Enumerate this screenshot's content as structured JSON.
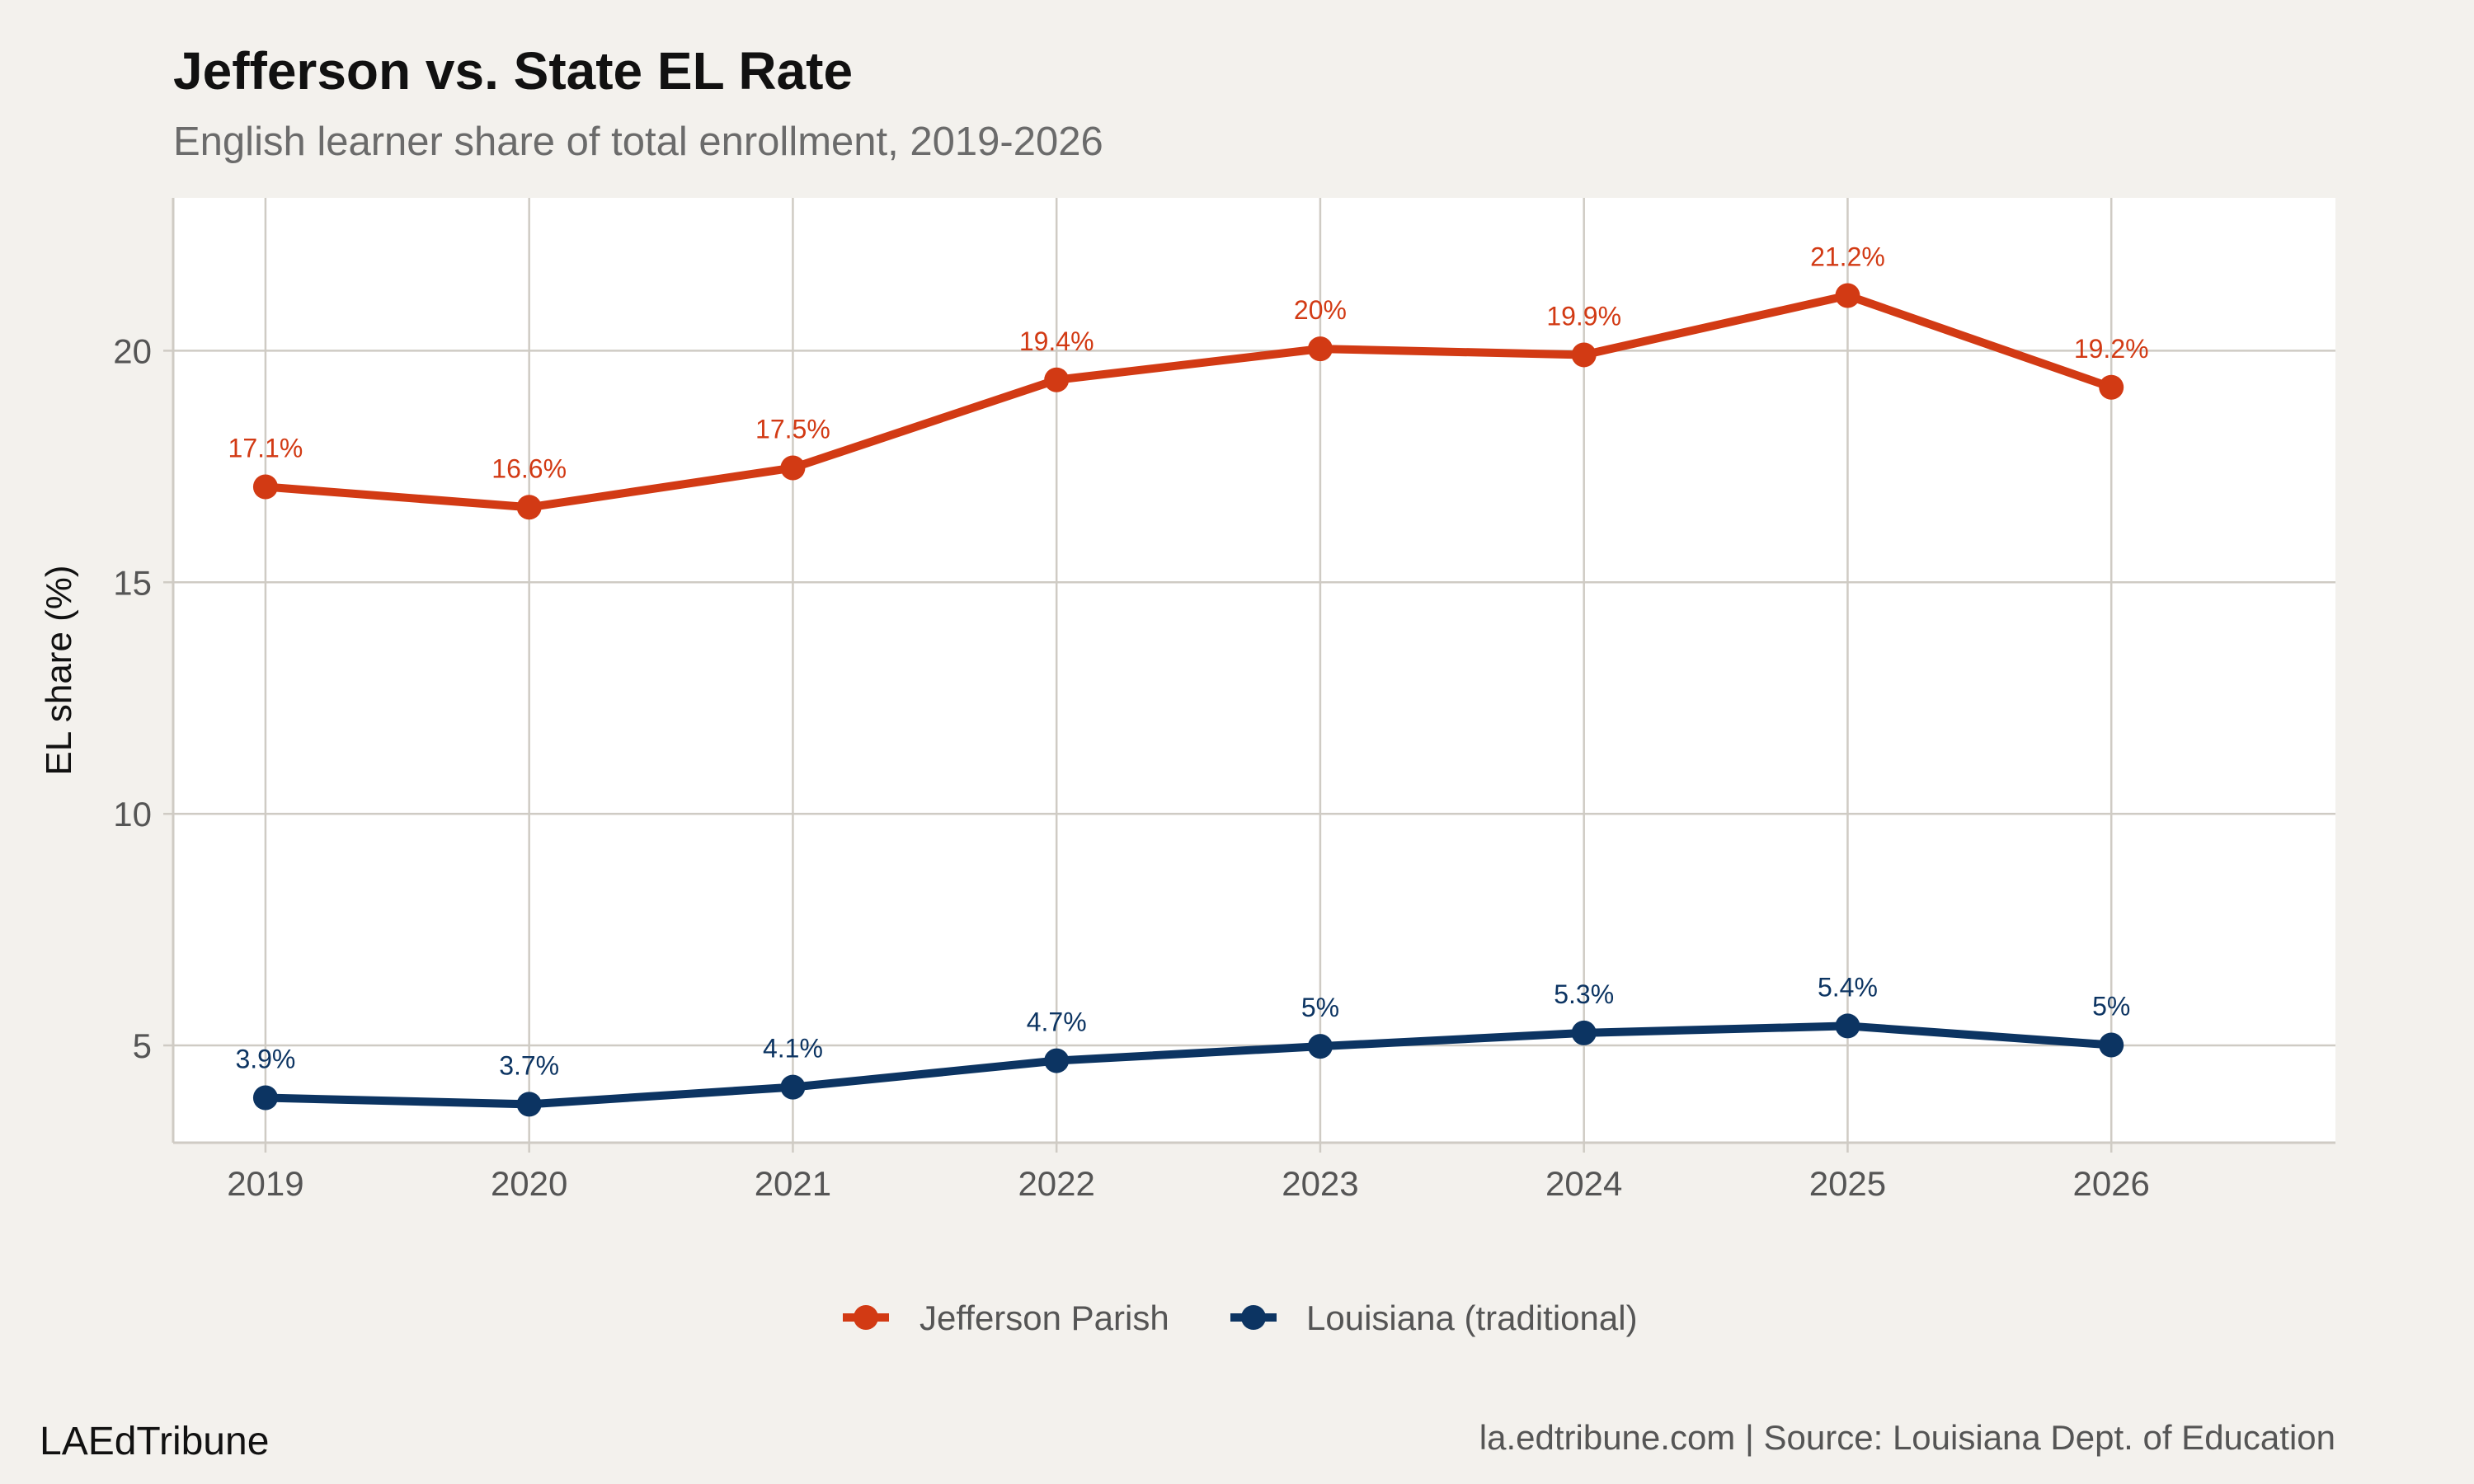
{
  "title": "Jefferson vs. State EL Rate",
  "subtitle": "English learner share of total enrollment, 2019-2026",
  "branding": "LAEdTribune",
  "source": "la.edtribune.com | Source: Louisiana Dept. of Education",
  "colors": {
    "background": "#f3f1ed",
    "panel": "#ffffff",
    "grid": "#cfcbc4",
    "jefferson": "#d23a14",
    "louisiana": "#0c3462"
  },
  "chart_data": {
    "type": "line",
    "title": "Jefferson vs. State EL Rate",
    "subtitle": "English learner share of total enrollment, 2019-2026",
    "xlabel": "",
    "ylabel": "EL share (%)",
    "categories": [
      "2019",
      "2020",
      "2021",
      "2022",
      "2023",
      "2024",
      "2025",
      "2026"
    ],
    "x": [
      2019,
      2020,
      2021,
      2022,
      2023,
      2024,
      2025,
      2026
    ],
    "xlim": [
      2018.65,
      2026.85
    ],
    "ylim": [
      2.9,
      23.3
    ],
    "yticks": [
      5,
      10,
      15,
      20
    ],
    "grid": true,
    "legend_position": "bottom",
    "series": [
      {
        "name": "Jefferson Parish",
        "color": "#d23a14",
        "values": [
          17.06,
          16.62,
          17.47,
          19.37,
          20.04,
          19.91,
          21.19,
          19.21
        ],
        "labels": [
          "17.1%",
          "16.6%",
          "17.5%",
          "19.4%",
          "20%",
          "19.9%",
          "21.2%",
          "19.2%"
        ]
      },
      {
        "name": "Louisiana (traditional)",
        "color": "#0c3462",
        "values": [
          3.87,
          3.73,
          4.1,
          4.67,
          4.98,
          5.27,
          5.42,
          5.01
        ],
        "labels": [
          "3.9%",
          "3.7%",
          "4.1%",
          "4.7%",
          "5%",
          "5.3%",
          "5.4%",
          "5%"
        ]
      }
    ]
  }
}
